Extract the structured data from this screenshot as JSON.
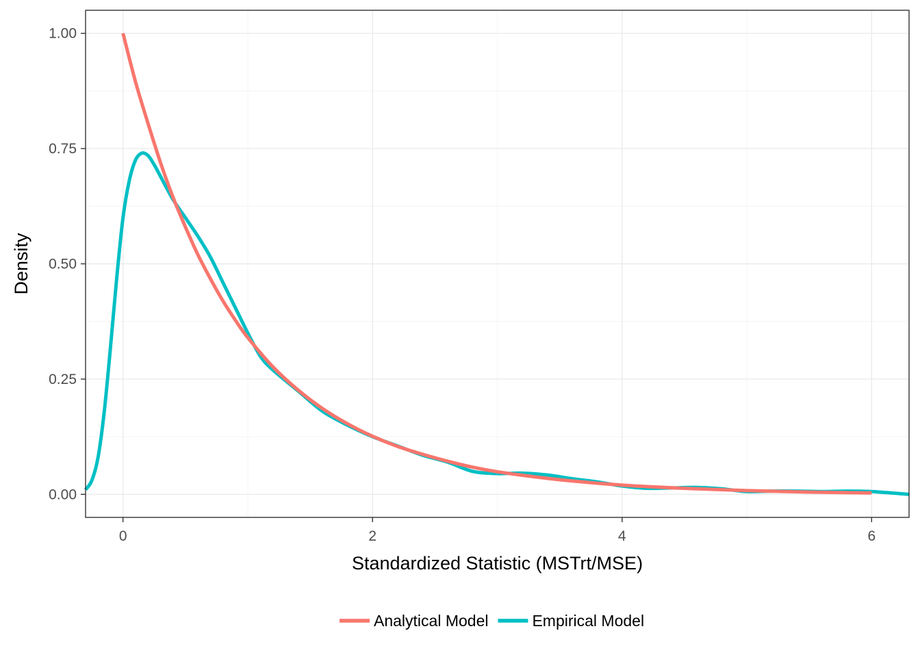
{
  "chart_data": {
    "type": "line",
    "title": "",
    "xlabel": "Standardized Statistic (MSTrt/MSE)",
    "ylabel": "Density",
    "xlim": [
      -0.3,
      6.3
    ],
    "ylim": [
      -0.05,
      1.05
    ],
    "x_ticks": [
      0,
      2,
      4,
      6
    ],
    "x_tick_labels": [
      "0",
      "2",
      "4",
      "6"
    ],
    "y_ticks": [
      0,
      0.25,
      0.5,
      0.75,
      1
    ],
    "y_tick_labels": [
      "0.00",
      "0.25",
      "0.50",
      "0.75",
      "1.00"
    ],
    "grid": true,
    "legend_position": "bottom",
    "series": [
      {
        "name": "Analytical Model",
        "color": "#F8766D",
        "x": [
          0.0,
          0.1,
          0.2,
          0.3,
          0.4,
          0.5,
          0.6,
          0.7,
          0.8,
          0.9,
          1.0,
          1.2,
          1.4,
          1.6,
          1.8,
          2.0,
          2.2,
          2.4,
          2.6,
          2.8,
          3.0,
          3.3,
          3.6,
          4.0,
          4.5,
          5.0,
          5.5,
          6.0
        ],
        "y": [
          1.0,
          0.895,
          0.805,
          0.72,
          0.645,
          0.58,
          0.52,
          0.468,
          0.42,
          0.378,
          0.34,
          0.277,
          0.227,
          0.186,
          0.153,
          0.126,
          0.104,
          0.087,
          0.072,
          0.059,
          0.049,
          0.038,
          0.029,
          0.02,
          0.013,
          0.008,
          0.005,
          0.003
        ]
      },
      {
        "name": "Empirical Model",
        "color": "#00BFC4",
        "x": [
          -0.3,
          -0.25,
          -0.2,
          -0.15,
          -0.1,
          -0.05,
          0.0,
          0.05,
          0.1,
          0.15,
          0.2,
          0.25,
          0.3,
          0.4,
          0.5,
          0.6,
          0.7,
          0.8,
          0.9,
          1.0,
          1.1,
          1.2,
          1.4,
          1.6,
          1.8,
          2.0,
          2.2,
          2.4,
          2.6,
          2.8,
          3.0,
          3.2,
          3.4,
          3.6,
          3.8,
          4.0,
          4.2,
          4.4,
          4.6,
          4.8,
          5.0,
          5.2,
          5.4,
          5.6,
          5.8,
          6.0,
          6.3
        ],
        "y": [
          0.01,
          0.03,
          0.08,
          0.18,
          0.32,
          0.47,
          0.6,
          0.68,
          0.725,
          0.74,
          0.735,
          0.715,
          0.69,
          0.64,
          0.6,
          0.56,
          0.515,
          0.46,
          0.405,
          0.35,
          0.3,
          0.27,
          0.225,
          0.18,
          0.15,
          0.125,
          0.105,
          0.085,
          0.07,
          0.05,
          0.045,
          0.046,
          0.042,
          0.034,
          0.027,
          0.018,
          0.013,
          0.014,
          0.015,
          0.012,
          0.006,
          0.007,
          0.007,
          0.006,
          0.007,
          0.006,
          0.0
        ]
      }
    ]
  }
}
